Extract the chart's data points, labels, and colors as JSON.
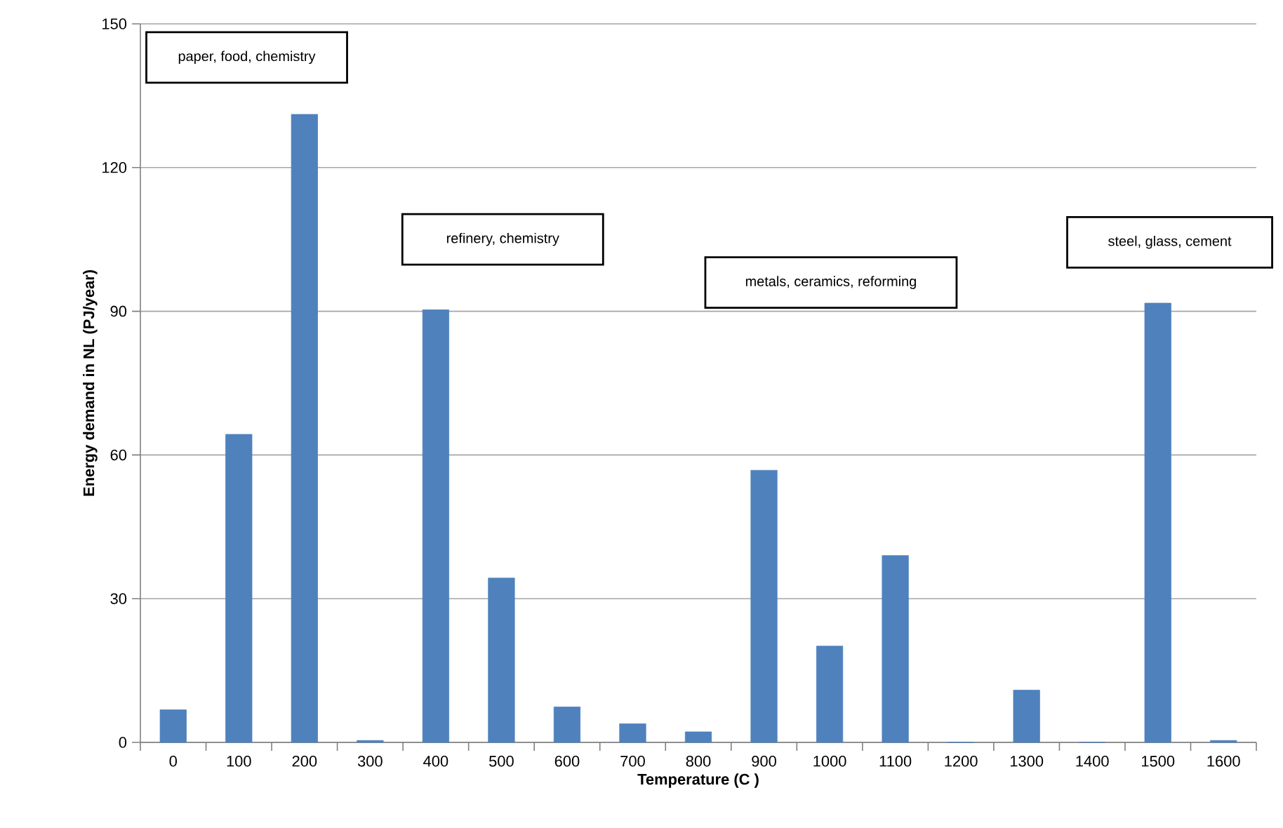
{
  "chart_data": {
    "type": "bar",
    "xlabel": "Temperature (C )",
    "ylabel": "Energy demand  in NL (PJ/year)",
    "categories": [
      "0",
      "100",
      "200",
      "300",
      "400",
      "500",
      "600",
      "700",
      "800",
      "900",
      "1000",
      "1100",
      "1200",
      "1300",
      "1400",
      "1500",
      "1600"
    ],
    "values": [
      6.8,
      64.3,
      131.1,
      0.4,
      90.3,
      34.3,
      7.4,
      3.9,
      2.2,
      56.8,
      20.1,
      39.0,
      0,
      10.9,
      0,
      91.7,
      0.4
    ],
    "color": "#4f81bd",
    "ylim": [
      0,
      150
    ],
    "yticks": [
      0,
      30,
      60,
      90,
      120,
      150
    ],
    "grid": "y",
    "annotations": [
      "paper, food, chemistry",
      "refinery, chemistry",
      "metals, ceramics, reforming",
      "steel, glass, cement"
    ]
  }
}
